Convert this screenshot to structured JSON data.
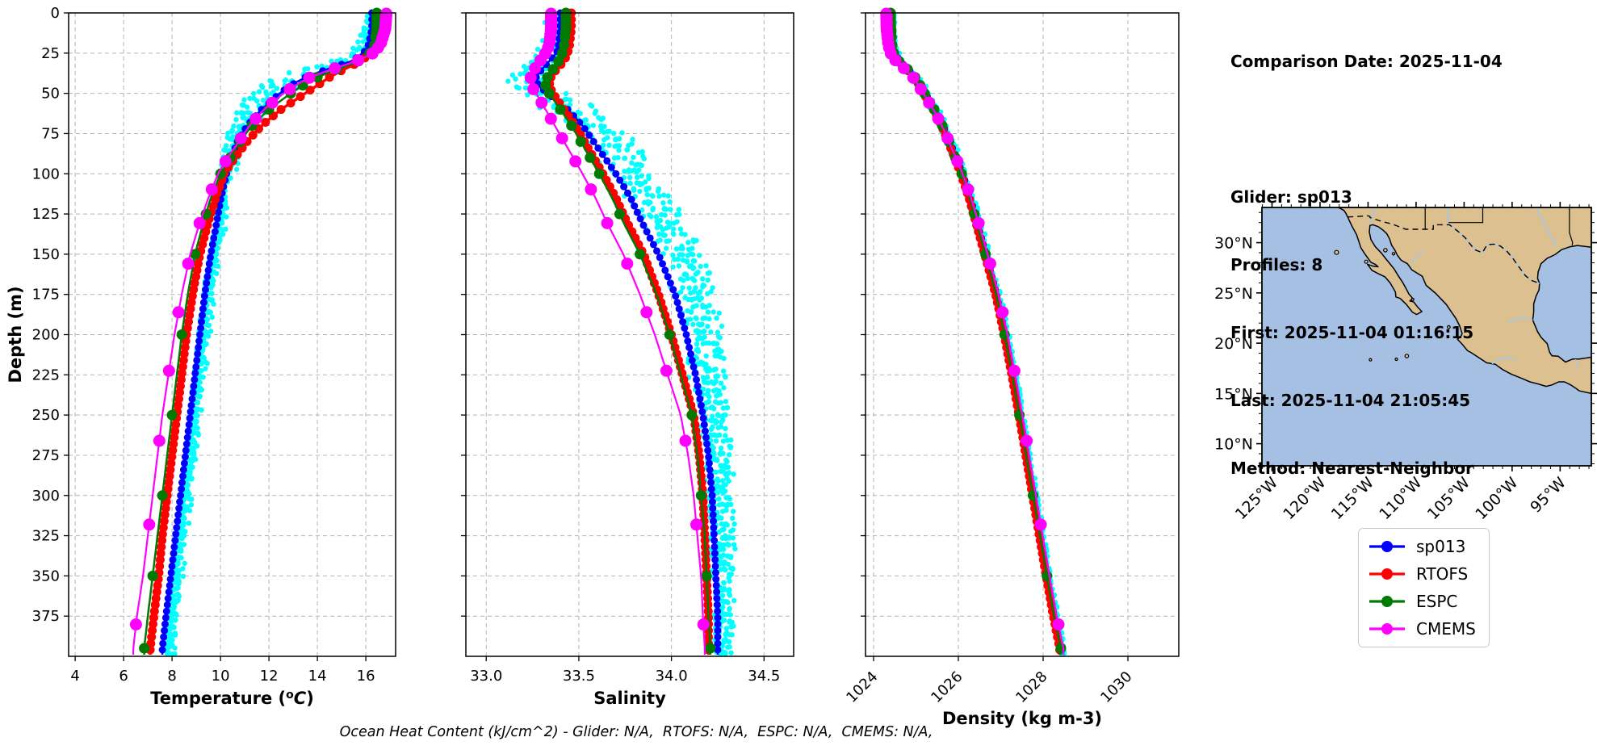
{
  "info_panel": {
    "comparison_date": "Comparison Date: 2025-11-04",
    "glider": "Glider: sp013",
    "profiles": "Profiles: 8",
    "first": "First: 2025-11-04 01:16:15",
    "last": "Last: 2025-11-04 21:05:45",
    "method": "Method: Nearest-Neighbor"
  },
  "footer_note": "Ocean Heat Content (kJ/cm^2) - Glider: N/A,  RTOFS: N/A,  ESPC: N/A,  CMEMS: N/A,",
  "legend": {
    "items": [
      {
        "label": "sp013",
        "color": "#0000ff"
      },
      {
        "label": "RTOFS",
        "color": "#ff0000"
      },
      {
        "label": "ESPC",
        "color": "#007a00"
      },
      {
        "label": "CMEMS",
        "color": "#ff00ff"
      }
    ]
  },
  "colors": {
    "scatter_cyan": "#00ffff",
    "grid": "#b4b4b4",
    "land": "#ddc08f",
    "ocean": "#a5c0e3",
    "river": "#a0c8f0"
  },
  "model_levels": {
    "ESPC": [
      0,
      2,
      4,
      6,
      8,
      10,
      12,
      15,
      20,
      25,
      30,
      35,
      40,
      45,
      50,
      60,
      70,
      80,
      90,
      100,
      125,
      150,
      200,
      250,
      300,
      350,
      395
    ],
    "CMEMS": [
      0.5,
      1.5,
      2.6,
      3.8,
      5.1,
      6.4,
      7.9,
      9.6,
      11.4,
      13.5,
      15.8,
      18.5,
      21.6,
      25.2,
      29.4,
      34.4,
      40.3,
      47.4,
      55.8,
      65.8,
      77.9,
      92.3,
      109.7,
      130.7,
      155.9,
      186.1,
      222.5,
      266.0,
      318.1,
      380.2
    ]
  },
  "chart_data": [
    {
      "type": "line",
      "name": "temperature-profile",
      "xlabel": "Temperature (°C)",
      "ylabel": "Depth (m)",
      "xlim": [
        3.73,
        17.23
      ],
      "xticks": [
        4,
        6,
        8,
        10,
        12,
        14,
        16
      ],
      "xtick_labels": [
        "4",
        "6",
        "8",
        "10",
        "12",
        "14",
        "16"
      ],
      "rotate_xtick_labels": false,
      "show_ytick_labels": true,
      "ylim": [
        0,
        400
      ],
      "yticks": [
        0,
        25,
        50,
        75,
        100,
        125,
        150,
        175,
        200,
        225,
        250,
        275,
        300,
        325,
        350,
        375
      ],
      "grid": true,
      "depths": [
        0,
        10,
        20,
        25,
        30,
        35,
        40,
        45,
        50,
        60,
        70,
        80,
        90,
        100,
        115,
        130,
        150,
        175,
        200,
        225,
        250,
        275,
        300,
        325,
        350,
        375,
        395
      ],
      "series": [
        {
          "name": "sp013",
          "color": "#0000ff",
          "line_width": 2.5,
          "marker_radius": 4.5,
          "marker_step": 4,
          "values": [
            16.25,
            16.25,
            16.1,
            15.9,
            15.4,
            14.4,
            13.5,
            12.9,
            12.45,
            11.7,
            11.1,
            10.7,
            10.45,
            10.25,
            10.02,
            9.85,
            9.6,
            9.35,
            9.15,
            8.95,
            8.75,
            8.55,
            8.35,
            8.15,
            7.95,
            7.75,
            7.6
          ]
        },
        {
          "name": "RTOFS",
          "color": "#ff0000",
          "line_width": 3.5,
          "marker_radius": 5.5,
          "marker_step": 4,
          "values": [
            16.5,
            16.5,
            16.4,
            16.2,
            15.8,
            15.1,
            14.5,
            14.0,
            13.5,
            12.5,
            11.7,
            11.1,
            10.6,
            10.15,
            9.8,
            9.5,
            9.15,
            8.85,
            8.6,
            8.4,
            8.2,
            8.0,
            7.8,
            7.6,
            7.45,
            7.25,
            7.1
          ]
        },
        {
          "name": "ESPC",
          "color": "#007a00",
          "line_width": 2.5,
          "marker_radius": 6.5,
          "marker_step": null,
          "values": [
            16.45,
            16.45,
            16.35,
            16.15,
            15.7,
            14.8,
            14.0,
            13.4,
            12.9,
            12.0,
            11.3,
            10.8,
            10.4,
            10.0,
            9.6,
            9.3,
            8.95,
            8.65,
            8.4,
            8.2,
            8.0,
            7.8,
            7.6,
            7.4,
            7.2,
            7.0,
            6.85
          ]
        },
        {
          "name": "CMEMS",
          "color": "#ff00ff",
          "line_width": 2.2,
          "marker_radius": 7.5,
          "marker_step": null,
          "values": [
            16.85,
            16.8,
            16.6,
            16.3,
            15.6,
            14.6,
            13.7,
            13.1,
            12.6,
            11.8,
            11.2,
            10.75,
            10.3,
            9.9,
            9.5,
            9.15,
            8.75,
            8.4,
            8.1,
            7.85,
            7.6,
            7.4,
            7.2,
            7.0,
            6.8,
            6.55,
            6.4
          ]
        }
      ],
      "scatter": {
        "color": "#00ffff",
        "profiles": 8,
        "amp": [
          [
            0,
            0.3
          ],
          [
            25,
            0.5
          ],
          [
            35,
            0.8
          ],
          [
            55,
            0.7
          ],
          [
            80,
            0.35
          ],
          [
            120,
            0.22
          ],
          [
            399,
            0.2
          ]
        ],
        "bias": [
          [
            0,
            0.15
          ],
          [
            25,
            -0.05
          ],
          [
            40,
            -0.45
          ],
          [
            60,
            -0.35
          ],
          [
            90,
            0.0
          ],
          [
            130,
            0.15
          ],
          [
            399,
            0.3
          ]
        ]
      }
    },
    {
      "type": "line",
      "name": "salinity-profile",
      "xlabel": "Salinity",
      "ylabel": "",
      "xlim": [
        32.89,
        34.66
      ],
      "xticks": [
        33.0,
        33.5,
        34.0,
        34.5
      ],
      "xtick_labels": [
        "33.0",
        "33.5",
        "34.0",
        "34.5"
      ],
      "rotate_xtick_labels": false,
      "show_ytick_labels": false,
      "ylim": [
        0,
        400
      ],
      "yticks": [
        0,
        25,
        50,
        75,
        100,
        125,
        150,
        175,
        200,
        225,
        250,
        275,
        300,
        325,
        350,
        375
      ],
      "grid": true,
      "depths": [
        0,
        10,
        20,
        25,
        30,
        35,
        40,
        45,
        50,
        60,
        70,
        80,
        90,
        100,
        115,
        130,
        150,
        175,
        200,
        225,
        250,
        275,
        300,
        325,
        350,
        375,
        395
      ],
      "series": [
        {
          "name": "sp013",
          "color": "#0000ff",
          "line_width": 2.5,
          "marker_radius": 4.5,
          "marker_step": 4,
          "values": [
            33.4,
            33.4,
            33.39,
            33.38,
            33.34,
            33.3,
            33.27,
            33.28,
            33.33,
            33.44,
            33.52,
            33.58,
            33.64,
            33.7,
            33.78,
            33.84,
            33.93,
            34.02,
            34.08,
            34.13,
            34.17,
            34.2,
            34.22,
            34.23,
            34.24,
            34.25,
            34.25
          ]
        },
        {
          "name": "RTOFS",
          "color": "#ff0000",
          "line_width": 3.5,
          "marker_radius": 5.5,
          "marker_step": 4,
          "values": [
            33.46,
            33.46,
            33.45,
            33.44,
            33.42,
            33.38,
            33.35,
            33.34,
            33.36,
            33.42,
            33.48,
            33.53,
            33.58,
            33.63,
            33.7,
            33.76,
            33.85,
            33.93,
            34.0,
            34.06,
            34.12,
            34.15,
            34.17,
            34.18,
            34.19,
            34.2,
            34.2
          ]
        },
        {
          "name": "ESPC",
          "color": "#007a00",
          "line_width": 2.5,
          "marker_radius": 6.5,
          "marker_step": null,
          "values": [
            33.43,
            33.43,
            33.42,
            33.41,
            33.39,
            33.36,
            33.33,
            33.32,
            33.34,
            33.4,
            33.46,
            33.51,
            33.56,
            33.61,
            33.68,
            33.74,
            33.83,
            33.92,
            33.99,
            34.05,
            34.11,
            34.14,
            34.16,
            34.18,
            34.19,
            34.2,
            34.21
          ]
        },
        {
          "name": "CMEMS",
          "color": "#ff00ff",
          "line_width": 2.2,
          "marker_radius": 7.5,
          "marker_step": null,
          "values": [
            33.35,
            33.35,
            33.34,
            33.32,
            33.29,
            33.26,
            33.24,
            33.24,
            33.27,
            33.32,
            33.37,
            33.42,
            33.47,
            33.52,
            33.59,
            33.65,
            33.74,
            33.83,
            33.91,
            33.98,
            34.05,
            34.09,
            34.12,
            34.14,
            34.16,
            34.17,
            34.18
          ]
        }
      ],
      "scatter": {
        "color": "#00ffff",
        "profiles": 8,
        "amp": [
          [
            0,
            0.06
          ],
          [
            35,
            0.1
          ],
          [
            60,
            0.14
          ],
          [
            120,
            0.12
          ],
          [
            399,
            0.05
          ]
        ],
        "bias": [
          [
            0,
            -0.02
          ],
          [
            45,
            -0.06
          ],
          [
            80,
            0.08
          ],
          [
            150,
            0.12
          ],
          [
            250,
            0.05
          ],
          [
            399,
            0.02
          ]
        ]
      }
    },
    {
      "type": "line",
      "name": "density-profile",
      "xlabel": "Density (kg m-3)",
      "ylabel": "",
      "xlim": [
        1023.81,
        1031.2
      ],
      "xticks": [
        1024,
        1026,
        1028,
        1030
      ],
      "xtick_labels": [
        "1024",
        "1026",
        "1028",
        "1030"
      ],
      "rotate_xtick_labels": true,
      "show_ytick_labels": false,
      "ylim": [
        0,
        400
      ],
      "yticks": [
        0,
        25,
        50,
        75,
        100,
        125,
        150,
        175,
        200,
        225,
        250,
        275,
        300,
        325,
        350,
        375
      ],
      "grid": true,
      "depths": [
        0,
        10,
        20,
        25,
        30,
        35,
        40,
        45,
        50,
        60,
        70,
        80,
        90,
        100,
        115,
        130,
        150,
        175,
        200,
        225,
        250,
        275,
        300,
        325,
        350,
        375,
        395
      ],
      "series": [
        {
          "name": "sp013",
          "color": "#0000ff",
          "line_width": 2.5,
          "marker_radius": 4.5,
          "marker_step": 4,
          "values": [
            1024.42,
            1024.43,
            1024.46,
            1024.5,
            1024.62,
            1024.82,
            1025.0,
            1025.12,
            1025.22,
            1025.45,
            1025.64,
            1025.8,
            1025.95,
            1026.1,
            1026.28,
            1026.44,
            1026.65,
            1026.9,
            1027.1,
            1027.28,
            1027.44,
            1027.6,
            1027.76,
            1027.92,
            1028.08,
            1028.25,
            1028.4
          ]
        },
        {
          "name": "RTOFS",
          "color": "#ff0000",
          "line_width": 3.5,
          "marker_radius": 5.5,
          "marker_step": 4,
          "values": [
            1024.37,
            1024.38,
            1024.41,
            1024.46,
            1024.58,
            1024.78,
            1024.96,
            1025.08,
            1025.18,
            1025.41,
            1025.6,
            1025.76,
            1025.91,
            1026.06,
            1026.25,
            1026.41,
            1026.62,
            1026.88,
            1027.08,
            1027.26,
            1027.43,
            1027.59,
            1027.75,
            1027.91,
            1028.07,
            1028.24,
            1028.39
          ]
        },
        {
          "name": "ESPC",
          "color": "#007a00",
          "line_width": 2.5,
          "marker_radius": 6.5,
          "marker_step": null,
          "values": [
            1024.4,
            1024.41,
            1024.44,
            1024.48,
            1024.6,
            1024.8,
            1024.98,
            1025.1,
            1025.2,
            1025.43,
            1025.62,
            1025.78,
            1025.93,
            1026.08,
            1026.27,
            1026.43,
            1026.64,
            1026.89,
            1027.09,
            1027.27,
            1027.44,
            1027.6,
            1027.76,
            1027.93,
            1028.09,
            1028.26,
            1028.42
          ]
        },
        {
          "name": "CMEMS",
          "color": "#ff00ff",
          "line_width": 2.2,
          "marker_radius": 7.5,
          "marker_step": null,
          "values": [
            1024.3,
            1024.31,
            1024.35,
            1024.4,
            1024.53,
            1024.74,
            1024.93,
            1025.06,
            1025.17,
            1025.41,
            1025.61,
            1025.78,
            1025.94,
            1026.1,
            1026.3,
            1026.47,
            1026.69,
            1026.95,
            1027.16,
            1027.34,
            1027.51,
            1027.67,
            1027.83,
            1027.99,
            1028.15,
            1028.32,
            1028.48
          ]
        }
      ],
      "scatter": {
        "color": "#00ffff",
        "profiles": 8,
        "amp": [
          [
            0,
            0.07
          ],
          [
            50,
            0.09
          ],
          [
            399,
            0.05
          ]
        ],
        "bias": [
          [
            0,
            0.0
          ],
          [
            399,
            0.06
          ]
        ]
      }
    },
    {
      "type": "map",
      "name": "location-map",
      "extent": {
        "lon_min": -126.05,
        "lon_max": -91.75,
        "lat_min": 7.8,
        "lat_max": 33.5
      },
      "xtick_lons": [
        -125,
        -120,
        -115,
        -110,
        -105,
        -100,
        -95
      ],
      "xtick_labels": [
        "125°W",
        "120°W",
        "115°W",
        "110°W",
        "105°W",
        "100°W",
        "95°W"
      ],
      "ytick_lats": [
        30,
        25,
        20,
        15,
        10
      ],
      "ytick_labels": [
        "30°N",
        "25°N",
        "20°N",
        "15°N",
        "10°N"
      ]
    }
  ]
}
